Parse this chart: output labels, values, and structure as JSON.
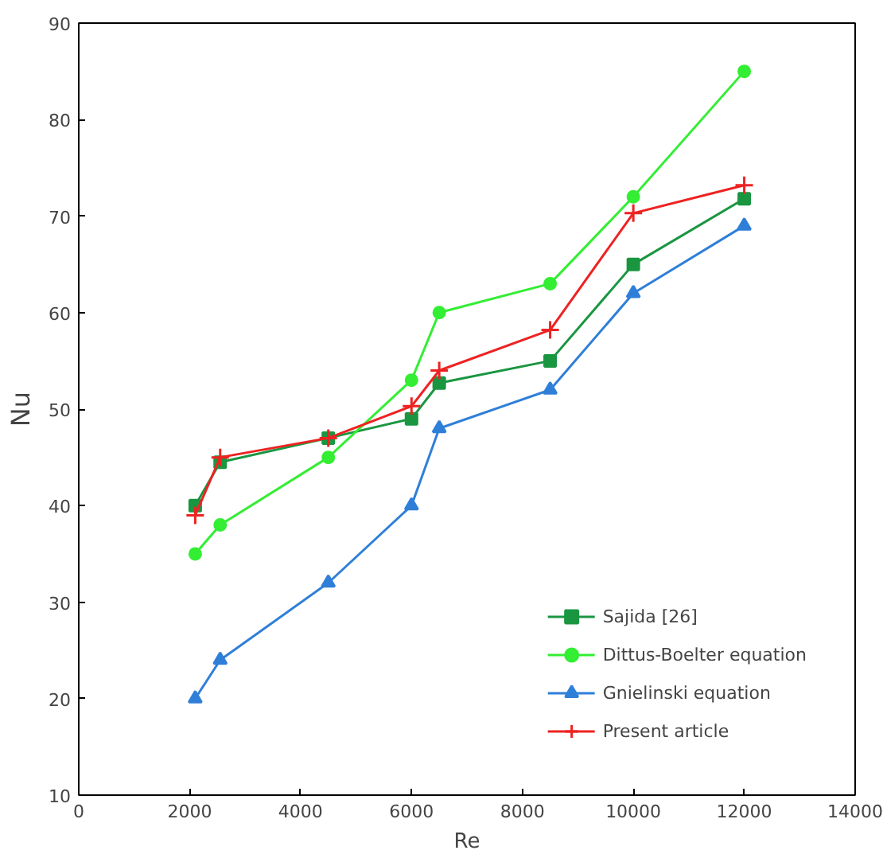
{
  "chart_data": {
    "type": "line",
    "xlabel": "Re",
    "ylabel": "Nu",
    "x": [
      2100,
      2550,
      4500,
      6000,
      6500,
      8500,
      10000,
      12000
    ],
    "series": [
      {
        "name": "Sajida [26]",
        "color": "#1a9641",
        "marker": "square",
        "values": [
          40,
          44.5,
          47,
          49,
          52.7,
          55,
          65,
          71.8
        ]
      },
      {
        "name": "Dittus-Boelter equation",
        "color": "#33ee33",
        "marker": "circle",
        "values": [
          35,
          38,
          45,
          53,
          60,
          63,
          72,
          85
        ]
      },
      {
        "name": "Gnielinski equation",
        "color": "#2f7fd8",
        "marker": "triangle",
        "values": [
          20,
          24,
          32,
          40,
          48,
          52,
          62,
          69
        ]
      },
      {
        "name": "Present article",
        "color": "#ee2222",
        "marker": "cross",
        "values": [
          39,
          45,
          47,
          50.3,
          54,
          58.2,
          70.3,
          73.2
        ]
      }
    ],
    "xlim": [
      0,
      14000
    ],
    "xticks": [
      0,
      2000,
      4000,
      6000,
      8000,
      10000,
      12000,
      14000
    ],
    "ylim": [
      10,
      90
    ],
    "yticks": [
      10,
      20,
      30,
      40,
      50,
      60,
      70,
      80,
      90
    ],
    "grid": false,
    "legend": "bottom right",
    "line_style": "solid"
  }
}
